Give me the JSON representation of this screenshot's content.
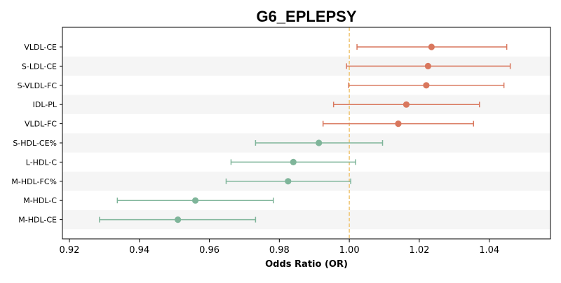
{
  "chart_data": {
    "type": "forest",
    "title": "G6_EPLEPSY",
    "xlabel": "Odds Ratio (OR)",
    "ylabel": "",
    "xlim": [
      0.918,
      1.0575
    ],
    "xticks": [
      0.92,
      0.94,
      0.96,
      0.98,
      1.0,
      1.02,
      1.04
    ],
    "xtick_labels": [
      "0.92",
      "0.94",
      "0.96",
      "0.98",
      "1.00",
      "1.02",
      "1.04"
    ],
    "reference_line": 1.0,
    "colors": {
      "positive": "#d9775d",
      "negative": "#7fb59a",
      "reference": "#f0c87a",
      "stripe": "#f5f5f5"
    },
    "points": [
      {
        "label": "VLDL-CE",
        "or": 1.0235,
        "ci_low": 1.0022,
        "ci_high": 1.045
      },
      {
        "label": "S-LDL-CE",
        "or": 1.0225,
        "ci_low": 0.9992,
        "ci_high": 1.046
      },
      {
        "label": "S-VLDL-FC",
        "or": 1.022,
        "ci_low": 0.9998,
        "ci_high": 1.0442
      },
      {
        "label": "IDL-PL",
        "or": 1.0163,
        "ci_low": 0.9955,
        "ci_high": 1.0372
      },
      {
        "label": "VLDL-FC",
        "or": 1.014,
        "ci_low": 0.9925,
        "ci_high": 1.0355
      },
      {
        "label": "S-HDL-CE%",
        "or": 0.9913,
        "ci_low": 0.9732,
        "ci_high": 1.0095
      },
      {
        "label": "L-HDL-C",
        "or": 0.984,
        "ci_low": 0.9662,
        "ci_high": 1.0018
      },
      {
        "label": "M-HDL-FC%",
        "or": 0.9825,
        "ci_low": 0.9648,
        "ci_high": 1.0004
      },
      {
        "label": "M-HDL-C",
        "or": 0.956,
        "ci_low": 0.9337,
        "ci_high": 0.9783
      },
      {
        "label": "M-HDL-CE",
        "or": 0.951,
        "ci_low": 0.9286,
        "ci_high": 0.9732
      }
    ]
  }
}
